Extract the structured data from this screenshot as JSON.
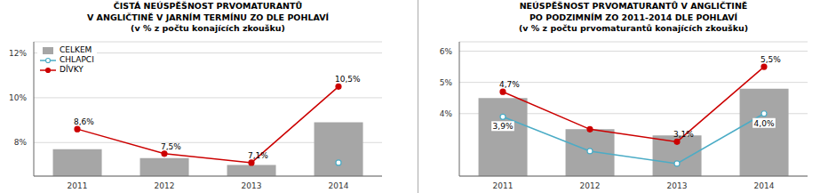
{
  "chart_data": [
    {
      "type": "bar",
      "title": "ČISTÁ NEÚSPĚŠNOST PRVOMATURANTŮ\nV ANGLIČTINĚ V JARNÍM TERMÍNU ZO DLE POHLAVÍ\n(v % z počtu konajících zkoušku)",
      "categories": [
        "2011",
        "2012",
        "2013",
        "2014"
      ],
      "series": [
        {
          "name": "CELKEM",
          "type": "bar",
          "color": "#a6a6a6",
          "values": [
            7.7,
            7.3,
            7.0,
            8.9
          ]
        },
        {
          "name": "CHLAPCI",
          "type": "line",
          "color": "#4bacc6",
          "marker": "open_circle",
          "values": [
            null,
            null,
            null,
            7.1
          ]
        },
        {
          "name": "DÍVKY",
          "type": "line",
          "color": "#cc0000",
          "marker": "circle",
          "values": [
            8.6,
            7.5,
            7.1,
            10.5
          ],
          "value_labels": [
            "8,6%",
            "7,5%",
            "7,1%",
            "10,5%"
          ]
        }
      ],
      "ylim": [
        6.5,
        12.5
      ],
      "yticks": [
        {
          "value": 8,
          "label": "8%"
        },
        {
          "value": 10,
          "label": "10%"
        },
        {
          "value": 12,
          "label": "12%"
        }
      ],
      "grid": true,
      "legend": "upper left"
    },
    {
      "type": "bar",
      "title": "NEÚSPĚŠNOST PRVOMATURANTŮ V ANGLIČTINĚ\nPO PODZIMNÍM ZO 2011-2014 DLE POHLAVÍ\n(v % z počtu prvomaturantů konajících zkoušku)",
      "categories": [
        "2011",
        "2012",
        "2013",
        "2014"
      ],
      "series": [
        {
          "type": "bar",
          "color": "#a6a6a6",
          "values": [
            4.5,
            3.5,
            3.3,
            4.8
          ]
        },
        {
          "type": "line",
          "color": "#4bacc6",
          "marker": "open_circle",
          "values": [
            3.9,
            2.8,
            2.4,
            4.0
          ],
          "value_labels": [
            "3,9%",
            null,
            null,
            "4,0%"
          ]
        },
        {
          "type": "line",
          "color": "#cc0000",
          "marker": "circle",
          "values": [
            4.7,
            3.5,
            3.1,
            5.5
          ],
          "value_labels": [
            "4,7%",
            null,
            "3,1%",
            "5,5%"
          ]
        }
      ],
      "ylim": [
        2,
        6.3
      ],
      "yticks": [
        {
          "value": 4,
          "label": "4%"
        },
        {
          "value": 5,
          "label": "5%"
        },
        {
          "value": 6,
          "label": "6%"
        }
      ],
      "grid": true
    }
  ]
}
